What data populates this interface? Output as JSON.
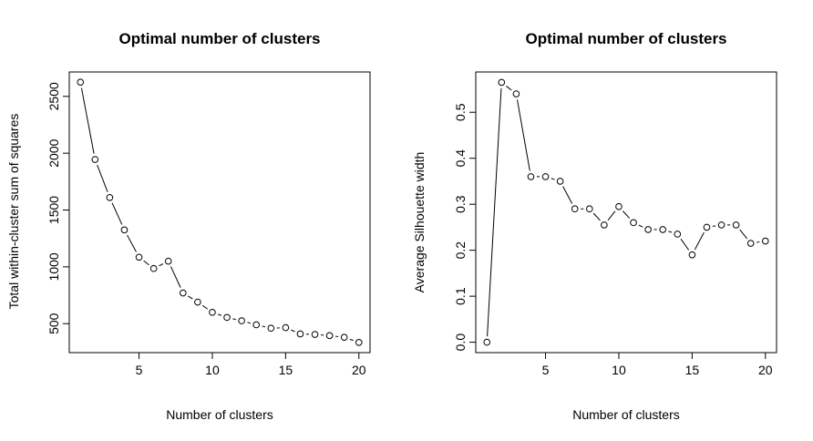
{
  "chart_data": [
    {
      "type": "line",
      "markers": "open-circle",
      "title": "Optimal number of clusters",
      "xlabel": "Number of clusters",
      "ylabel": "Total within-cluster sum of squares",
      "x": [
        1,
        2,
        3,
        4,
        5,
        6,
        7,
        8,
        9,
        10,
        11,
        12,
        13,
        14,
        15,
        16,
        17,
        18,
        19,
        20
      ],
      "values": [
        2625,
        1945,
        1610,
        1325,
        1085,
        985,
        1050,
        770,
        690,
        600,
        555,
        525,
        490,
        460,
        465,
        410,
        405,
        395,
        380,
        335
      ],
      "xlim": [
        0.24,
        20.76
      ],
      "ylim": [
        245.2,
        2714.8
      ],
      "xticks": [
        5,
        10,
        15,
        20
      ],
      "yticks": [
        500,
        1000,
        1500,
        2000,
        2500
      ],
      "xtick_labels": [
        "5",
        "10",
        "15",
        "20"
      ],
      "ytick_labels": [
        "500",
        "1000",
        "1500",
        "2000",
        "2500"
      ],
      "grid": false,
      "legend": "none"
    },
    {
      "type": "line",
      "markers": "open-circle",
      "title": "Optimal number of clusters",
      "xlabel": "Number of clusters",
      "ylabel": "Average Silhouette width",
      "x": [
        1,
        2,
        3,
        4,
        5,
        6,
        7,
        8,
        9,
        10,
        11,
        12,
        13,
        14,
        15,
        16,
        17,
        18,
        19,
        20
      ],
      "values": [
        0.0,
        0.565,
        0.54,
        0.36,
        0.36,
        0.35,
        0.29,
        0.29,
        0.255,
        0.295,
        0.26,
        0.245,
        0.245,
        0.235,
        0.19,
        0.25,
        0.255,
        0.255,
        0.215,
        0.22
      ],
      "xlim": [
        0.24,
        20.76
      ],
      "ylim": [
        -0.0226,
        0.5876
      ],
      "xticks": [
        5,
        10,
        15,
        20
      ],
      "yticks": [
        0.0,
        0.1,
        0.2,
        0.3,
        0.4,
        0.5
      ],
      "xtick_labels": [
        "5",
        "10",
        "15",
        "20"
      ],
      "ytick_labels": [
        "0.0",
        "0.1",
        "0.2",
        "0.3",
        "0.4",
        "0.5"
      ],
      "grid": false,
      "legend": "none"
    }
  ]
}
